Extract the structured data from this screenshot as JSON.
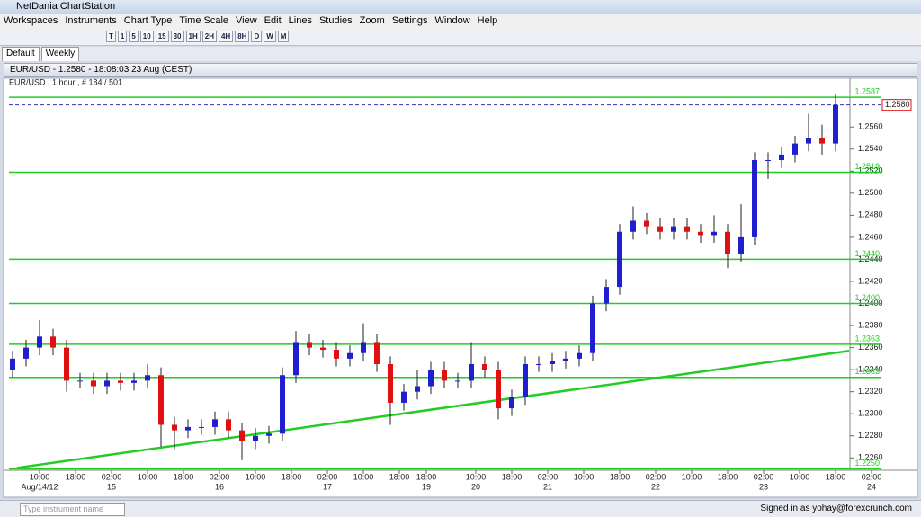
{
  "window": {
    "title": "NetDania ChartStation"
  },
  "menu": [
    "Workspaces",
    "Instruments",
    "Chart Type",
    "Time Scale",
    "View",
    "Edit",
    "Lines",
    "Studies",
    "Zoom",
    "Settings",
    "Window",
    "Help"
  ],
  "toolbar": [
    "T",
    "1",
    "5",
    "10",
    "15",
    "30",
    "1H",
    "2H",
    "4H",
    "8H",
    "D",
    "W",
    "M"
  ],
  "tabs": [
    "Default",
    "Weekly"
  ],
  "chart_header": {
    "title": "EUR/USD - 1.2580 - 18:08:03  23 Aug (CEST)",
    "subtitle": "EUR/USD , 1 hour , # 184 / 501"
  },
  "status": {
    "search_placeholder": "Type instrument name",
    "signed_in": "Signed in as yohay@forexcrunch.com"
  },
  "chart_data": {
    "type": "candlestick",
    "xlim": [
      0,
      192
    ],
    "ylim": [
      1.2248,
      1.2605
    ],
    "yticks": [
      {
        "value": 1.226,
        "label": "1.2260"
      },
      {
        "value": 1.228,
        "label": "1.2280"
      },
      {
        "value": 1.23,
        "label": "1.2300"
      },
      {
        "value": 1.232,
        "label": "1.2320"
      },
      {
        "value": 1.234,
        "label": "1.2340"
      },
      {
        "value": 1.236,
        "label": "1.2360"
      },
      {
        "value": 1.238,
        "label": "1.2380"
      },
      {
        "value": 1.24,
        "label": "1.2400"
      },
      {
        "value": 1.242,
        "label": "1.2420"
      },
      {
        "value": 1.244,
        "label": "1.2440"
      },
      {
        "value": 1.246,
        "label": "1.2460"
      },
      {
        "value": 1.248,
        "label": "1.2480"
      },
      {
        "value": 1.25,
        "label": "1.2500"
      },
      {
        "value": 1.252,
        "label": "1.2520"
      },
      {
        "value": 1.254,
        "label": "1.2540"
      },
      {
        "value": 1.256,
        "label": "1.2560"
      }
    ],
    "xticks": [
      {
        "value": 6,
        "label": "10:00"
      },
      {
        "value": 14,
        "label": "18:00"
      },
      {
        "value": 22,
        "label": "02:00"
      },
      {
        "value": 30,
        "label": "10:00"
      },
      {
        "value": 38,
        "label": "18:00"
      },
      {
        "value": 46,
        "label": "02:00"
      },
      {
        "value": 54,
        "label": "10:00"
      },
      {
        "value": 62,
        "label": "18:00"
      },
      {
        "value": 70,
        "label": "02:00"
      },
      {
        "value": 78,
        "label": "10:00"
      },
      {
        "value": 86,
        "label": "18:00"
      },
      {
        "value": 92,
        "label": "18:00"
      },
      {
        "value": 103,
        "label": "10:00"
      },
      {
        "value": 111,
        "label": "18:00"
      },
      {
        "value": 119,
        "label": "02:00"
      },
      {
        "value": 127,
        "label": "10:00"
      },
      {
        "value": 135,
        "label": "18:00"
      },
      {
        "value": 143,
        "label": "02:00"
      },
      {
        "value": 151,
        "label": "10:00"
      },
      {
        "value": 159,
        "label": "18:00"
      },
      {
        "value": 167,
        "label": "02:00"
      },
      {
        "value": 175,
        "label": "10:00"
      },
      {
        "value": 183,
        "label": "18:00"
      },
      {
        "value": 191,
        "label": "02:00"
      }
    ],
    "date_ticks": [
      {
        "value": 6,
        "label": "Aug/14/12"
      },
      {
        "value": 22,
        "label": "15"
      },
      {
        "value": 46,
        "label": "16"
      },
      {
        "value": 70,
        "label": "17"
      },
      {
        "value": 92,
        "label": "19"
      },
      {
        "value": 103,
        "label": "20"
      },
      {
        "value": 119,
        "label": "21"
      },
      {
        "value": 143,
        "label": "22"
      },
      {
        "value": 167,
        "label": "23"
      },
      {
        "value": 191,
        "label": "24"
      }
    ],
    "up_color": "#1f1fd0",
    "down_color": "#e01010",
    "level_color": "#22cc22",
    "current_color": "#3333aa",
    "x": [
      0,
      3,
      6,
      9,
      12,
      15,
      18,
      21,
      24,
      27,
      30,
      33,
      36,
      39,
      42,
      45,
      48,
      51,
      54,
      57,
      60,
      63,
      66,
      69,
      72,
      75,
      78,
      81,
      84,
      87,
      90,
      93,
      96,
      99,
      102,
      105,
      108,
      111,
      114,
      117,
      120,
      123,
      126,
      129,
      132,
      135,
      138,
      141,
      144,
      147,
      150,
      153,
      156,
      159,
      162,
      165,
      168,
      171,
      174,
      177,
      180,
      183
    ],
    "open": [
      1.234,
      1.235,
      1.236,
      1.237,
      1.236,
      1.233,
      1.233,
      1.2325,
      1.233,
      1.2328,
      1.233,
      1.2335,
      1.229,
      1.2285,
      1.2288,
      1.2288,
      1.2295,
      1.2285,
      1.2275,
      1.228,
      1.2282,
      1.2335,
      1.2365,
      1.236,
      1.2358,
      1.235,
      1.2355,
      1.2365,
      1.2345,
      1.231,
      1.232,
      1.2325,
      1.234,
      1.233,
      1.233,
      1.2345,
      1.234,
      1.2305,
      1.2315,
      1.2345,
      1.2345,
      1.2348,
      1.235,
      1.2355,
      1.24,
      1.2415,
      1.2465,
      1.2475,
      1.247,
      1.2465,
      1.247,
      1.2465,
      1.2462,
      1.2465,
      1.2445,
      1.246,
      1.253,
      1.253,
      1.2535,
      1.2545,
      1.255,
      1.2545
    ],
    "high": [
      1.2357,
      1.2367,
      1.2385,
      1.2377,
      1.2367,
      1.2337,
      1.2337,
      1.2337,
      1.2337,
      1.2337,
      1.2345,
      1.2342,
      1.2297,
      1.2295,
      1.2295,
      1.2302,
      1.2302,
      1.2292,
      1.2287,
      1.2289,
      1.2342,
      1.2375,
      1.2372,
      1.2367,
      1.2365,
      1.2362,
      1.2382,
      1.2372,
      1.2352,
      1.2327,
      1.234,
      1.2347,
      1.2347,
      1.2337,
      1.2365,
      1.2352,
      1.2347,
      1.2322,
      1.2352,
      1.2352,
      1.2355,
      1.2357,
      1.2362,
      1.2407,
      1.2422,
      1.2472,
      1.2488,
      1.2482,
      1.2477,
      1.2477,
      1.2477,
      1.2472,
      1.248,
      1.2472,
      1.249,
      1.2537,
      1.2537,
      1.2542,
      1.2552,
      1.2572,
      1.2562,
      1.259
    ],
    "low": [
      1.2333,
      1.2343,
      1.2353,
      1.2353,
      1.232,
      1.2323,
      1.2318,
      1.2318,
      1.2321,
      1.2321,
      1.2323,
      1.227,
      1.2268,
      1.2278,
      1.2281,
      1.2281,
      1.2278,
      1.2258,
      1.2268,
      1.2273,
      1.2275,
      1.2328,
      1.2353,
      1.2351,
      1.2343,
      1.2343,
      1.2348,
      1.2338,
      1.229,
      1.2303,
      1.2313,
      1.2318,
      1.2323,
      1.2323,
      1.2323,
      1.2333,
      1.2295,
      1.2298,
      1.2308,
      1.2338,
      1.2338,
      1.2341,
      1.2343,
      1.2348,
      1.2393,
      1.2408,
      1.2458,
      1.2463,
      1.2458,
      1.2458,
      1.2458,
      1.2455,
      1.2455,
      1.2432,
      1.2438,
      1.2453,
      1.2513,
      1.2523,
      1.2528,
      1.2538,
      1.2535,
      1.2538
    ],
    "close": [
      1.235,
      1.236,
      1.237,
      1.236,
      1.233,
      1.233,
      1.2325,
      1.233,
      1.2328,
      1.233,
      1.2335,
      1.229,
      1.2285,
      1.2288,
      1.2288,
      1.2295,
      1.2285,
      1.2275,
      1.228,
      1.2282,
      1.2335,
      1.2365,
      1.236,
      1.2358,
      1.235,
      1.2355,
      1.2365,
      1.2345,
      1.231,
      1.232,
      1.2325,
      1.234,
      1.233,
      1.233,
      1.2345,
      1.234,
      1.2305,
      1.2315,
      1.2345,
      1.2345,
      1.2348,
      1.235,
      1.2355,
      1.24,
      1.2415,
      1.2465,
      1.2475,
      1.247,
      1.2465,
      1.247,
      1.2465,
      1.2462,
      1.2465,
      1.2445,
      1.246,
      1.253,
      1.253,
      1.2535,
      1.2545,
      1.255,
      1.2545,
      1.258
    ],
    "levels": [
      1.2587,
      1.2519,
      {
        "value": 1.244,
        "label": "1.2440"
      },
      {
        "value": 1.24,
        "label": "1.2400"
      },
      1.2363,
      1.2333,
      {
        "value": 1.225,
        "label": "1.2250"
      }
    ],
    "current_price": {
      "value": 1.258,
      "label": "1.2580"
    },
    "trendline": {
      "x": [
        1,
        186
      ],
      "y": [
        1.2251,
        1.2357
      ]
    }
  }
}
